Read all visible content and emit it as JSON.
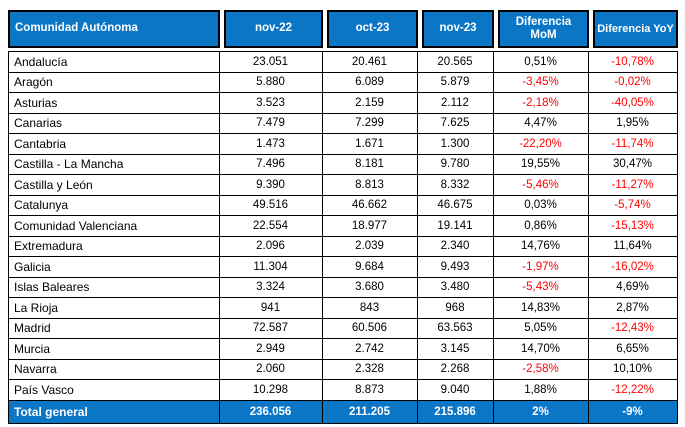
{
  "colors": {
    "header_bg": "#0b76c6",
    "total_bg": "#0b76c6",
    "negative_text": "#ff0000",
    "positive_text": "#000000",
    "header_text": "#ffffff",
    "grid_border": "#000000"
  },
  "chart_data": {
    "type": "table",
    "title": "",
    "columns": [
      "Comunidad Autónoma",
      "nov-22",
      "oct-23",
      "nov-23",
      "Diferencia MoM",
      "Diferencia YoY"
    ],
    "rows": [
      [
        "Andalucía",
        "23.051",
        "20.461",
        "20.565",
        "0,51%",
        "-10,78%"
      ],
      [
        "Aragón",
        "5.880",
        "6.089",
        "5.879",
        "-3,45%",
        "-0,02%"
      ],
      [
        "Asturias",
        "3.523",
        "2.159",
        "2.112",
        "-2,18%",
        "-40,05%"
      ],
      [
        "Canarias",
        "7.479",
        "7.299",
        "7.625",
        "4,47%",
        "1,95%"
      ],
      [
        "Cantabria",
        "1.473",
        "1.671",
        "1.300",
        "-22,20%",
        "-11,74%"
      ],
      [
        "Castilla - La Mancha",
        "7.496",
        "8.181",
        "9.780",
        "19,55%",
        "30,47%"
      ],
      [
        "Castilla y León",
        "9.390",
        "8.813",
        "8.332",
        "-5,46%",
        "-11,27%"
      ],
      [
        "Catalunya",
        "49.516",
        "46.662",
        "46.675",
        "0,03%",
        "-5,74%"
      ],
      [
        "Comunidad Valenciana",
        "22.554",
        "18.977",
        "19.141",
        "0,86%",
        "-15,13%"
      ],
      [
        "Extremadura",
        "2.096",
        "2.039",
        "2.340",
        "14,76%",
        "11,64%"
      ],
      [
        "Galicia",
        "11.304",
        "9.684",
        "9.493",
        "-1,97%",
        "-16,02%"
      ],
      [
        "Islas Baleares",
        "3.324",
        "3.680",
        "3.480",
        "-5,43%",
        "4,69%"
      ],
      [
        "La Rioja",
        "941",
        "843",
        "968",
        "14,83%",
        "2,87%"
      ],
      [
        "Madrid",
        "72.587",
        "60.506",
        "63.563",
        "5,05%",
        "-12,43%"
      ],
      [
        "Murcia",
        "2.949",
        "2.742",
        "3.145",
        "14,70%",
        "6,65%"
      ],
      [
        "Navarra",
        "2.060",
        "2.328",
        "2.268",
        "-2,58%",
        "10,10%"
      ],
      [
        "País Vasco",
        "10.298",
        "8.873",
        "9.040",
        "1,88%",
        "-12,22%"
      ]
    ],
    "total_row": [
      "Total general",
      "236.056",
      "211.205",
      "215.896",
      "2%",
      "-9%"
    ]
  }
}
